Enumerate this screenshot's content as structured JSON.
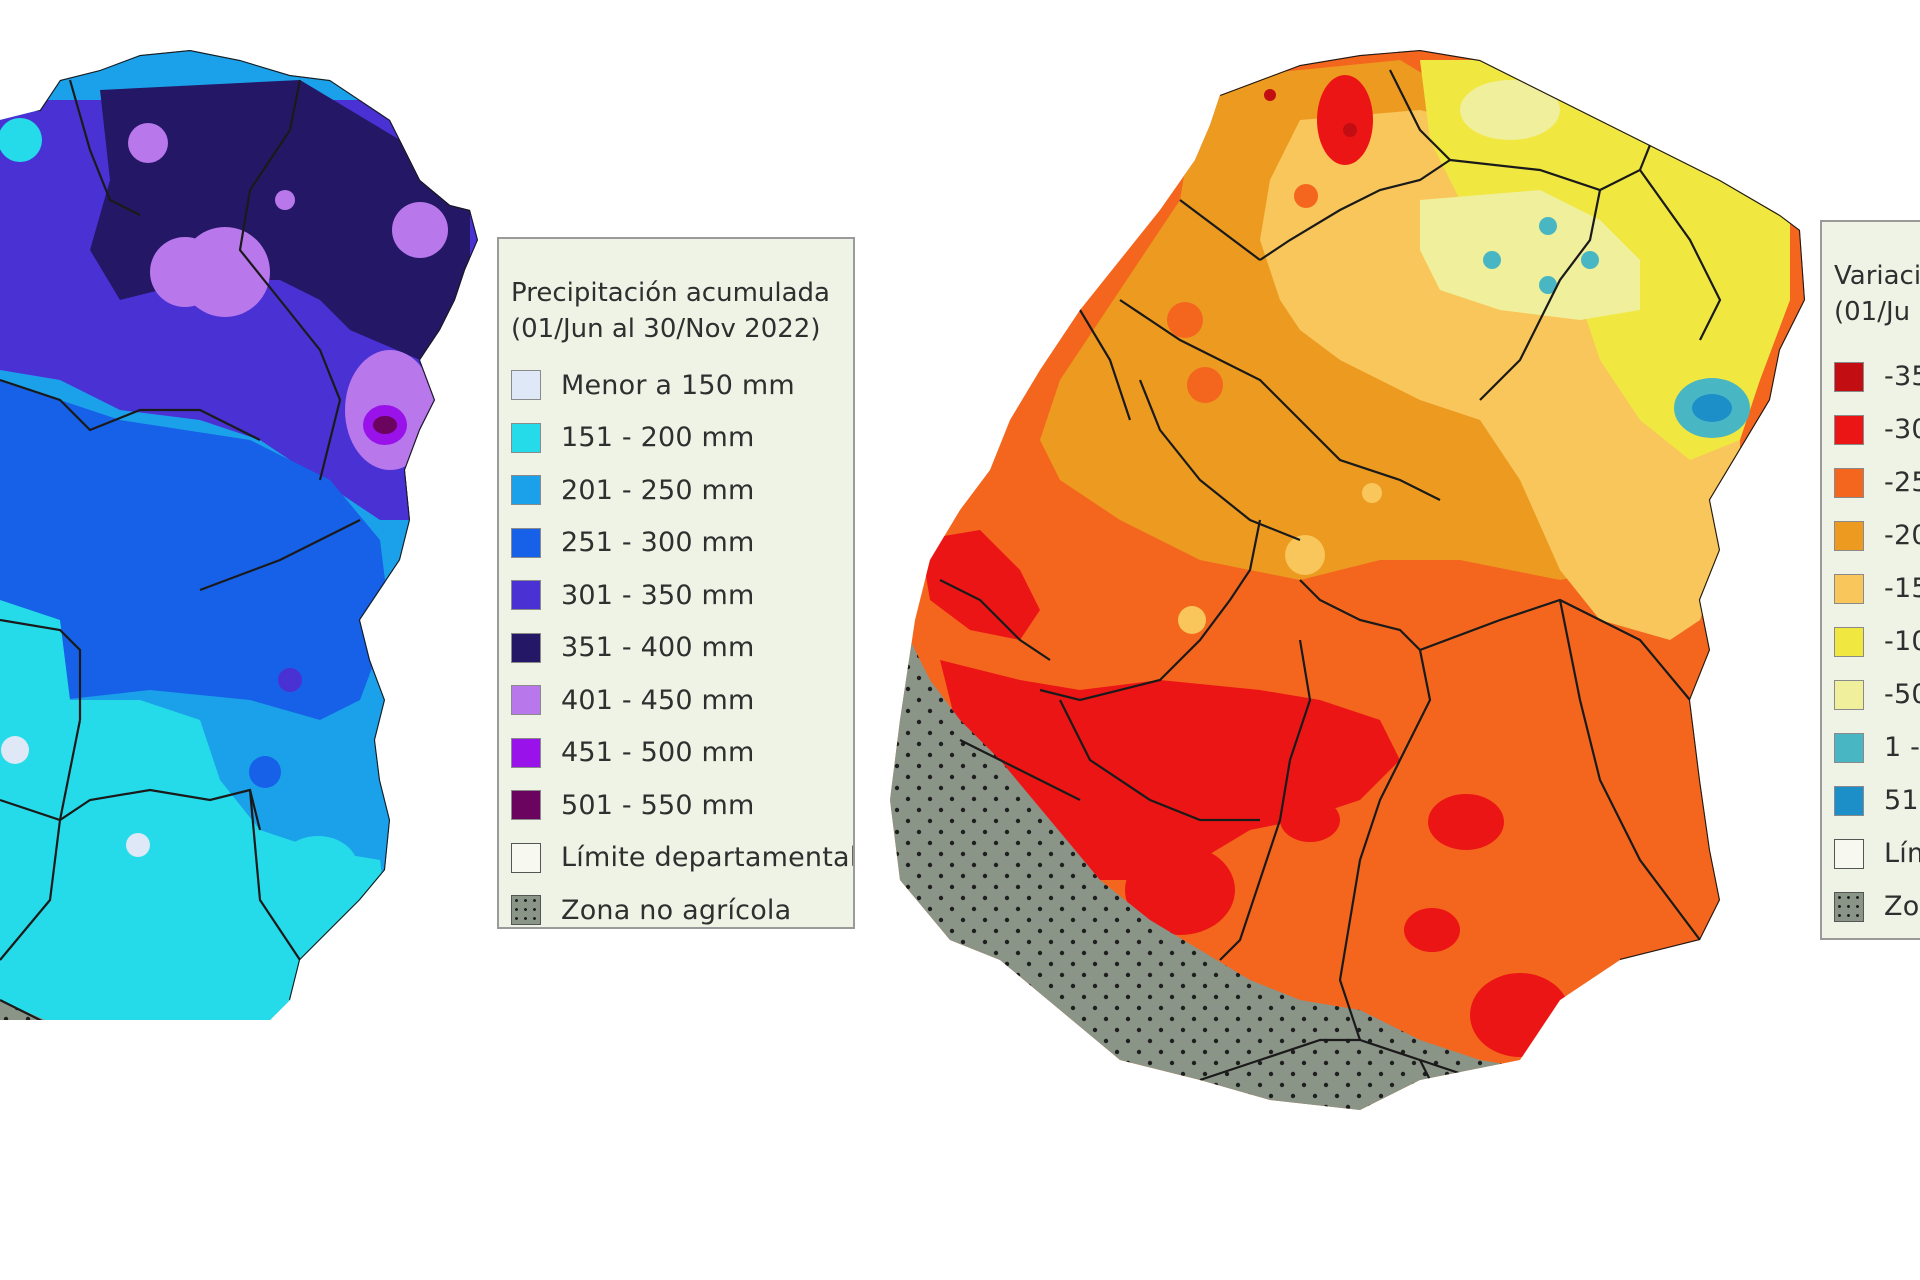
{
  "map_precip": {
    "legend": {
      "title": "Precipitación acumulada",
      "subtitle": "(01/Jun al 30/Nov 2022)",
      "items": [
        {
          "label": "Menor a 150 mm",
          "color": "#dfe8f6"
        },
        {
          "label": "151 - 200 mm",
          "color": "#25dbe9"
        },
        {
          "label": "201 - 250 mm",
          "color": "#1ba1ea"
        },
        {
          "label": "251 - 300 mm",
          "color": "#1661e8"
        },
        {
          "label": "301 - 350 mm",
          "color": "#4a31d4"
        },
        {
          "label": "351 - 400 mm",
          "color": "#241766"
        },
        {
          "label": "401 - 450 mm",
          "color": "#b877ea"
        },
        {
          "label": "451 - 500 mm",
          "color": "#9a12ea"
        },
        {
          "label": "501 - 550 mm",
          "color": "#6a045e"
        }
      ],
      "limite_label": "Límite departamental",
      "zona_label": "Zona no agrícola"
    }
  },
  "map_variation": {
    "legend": {
      "title": "Variaci",
      "subtitle": "(01/Ju",
      "items": [
        {
          "label": "-35",
          "color": "#c20d12"
        },
        {
          "label": "-30",
          "color": "#ec1515"
        },
        {
          "label": "-25",
          "color": "#f4661e"
        },
        {
          "label": "-20",
          "color": "#ec9a20"
        },
        {
          "label": "-15",
          "color": "#f8c65a"
        },
        {
          "label": "-10",
          "color": "#f1e741"
        },
        {
          "label": "-50",
          "color": "#f0ef9c"
        },
        {
          "label": "1 -",
          "color": "#49b7c3"
        },
        {
          "label": "51",
          "color": "#1c8fc9"
        }
      ],
      "limite_label": "Lím",
      "zona_label": "Zo"
    }
  }
}
